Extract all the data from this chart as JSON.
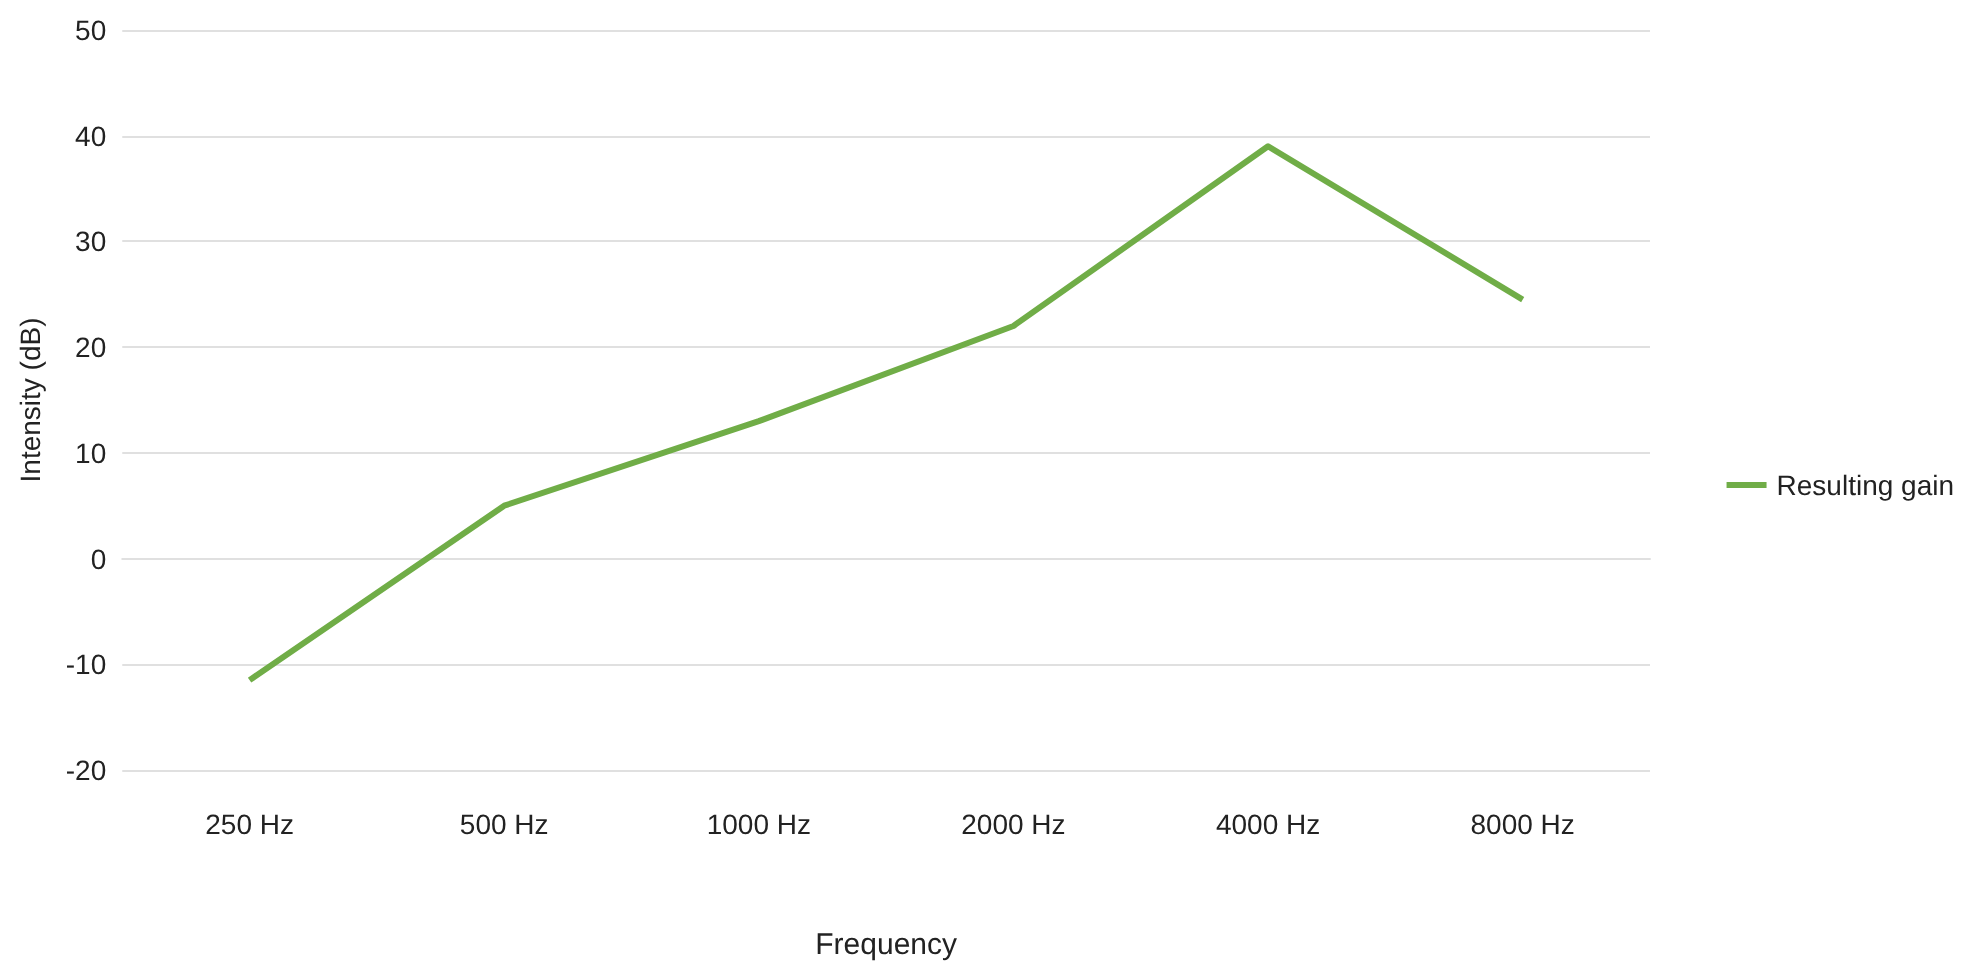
{
  "chart_data": {
    "type": "line",
    "xlabel": "Frequency",
    "ylabel": "Intensity (dB)",
    "categories": [
      "250 Hz",
      "500 Hz",
      "1000 Hz",
      "2000 Hz",
      "4000 Hz",
      "8000 Hz"
    ],
    "series": [
      {
        "name": "Resulting gain",
        "color": "#70ad47",
        "values": [
          -11.5,
          5,
          13,
          22,
          39,
          24.5
        ]
      }
    ],
    "ylim": [
      -20,
      50
    ],
    "yticks": [
      -20,
      -10,
      0,
      10,
      20,
      30,
      40,
      50
    ],
    "grid": "y",
    "legend": "right",
    "marker": "none",
    "line_style": "solid"
  }
}
